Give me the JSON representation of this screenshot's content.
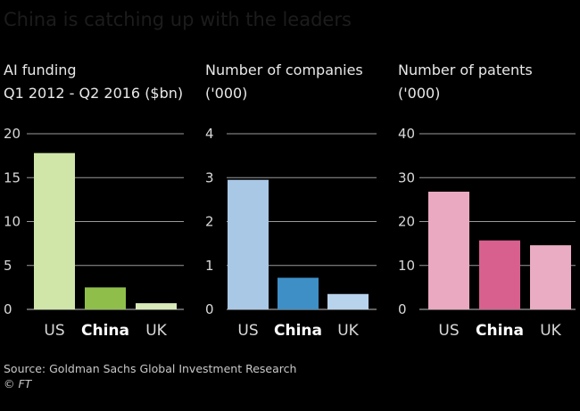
{
  "page": {
    "title": "China is catching up with the leaders",
    "source": "Source: Goldman Sachs Global Investment Research",
    "credit": "© FT"
  },
  "colors": {
    "background": "#000000",
    "gridline": "#9a9a9a",
    "us_funding": "#cfe6a8",
    "china_funding": "#8fbf4a",
    "uk_funding": "#d8eab8",
    "us_companies": "#a9c8e6",
    "china_companies": "#3d8fc6",
    "uk_companies": "#b8d3ec",
    "us_patents": "#eaa9c0",
    "china_patents": "#d8608e",
    "uk_patents": "#eaacc3"
  },
  "chart_data": [
    {
      "type": "bar",
      "title_line1": "AI funding",
      "title_line2": "Q1 2012 - Q2 2016 ($bn)",
      "categories": [
        "US",
        "China",
        "UK"
      ],
      "highlight": "China",
      "values": [
        17.8,
        2.5,
        0.7
      ],
      "ylim": [
        0,
        20
      ],
      "yticks": [
        "0",
        "5",
        "10",
        "15",
        "20"
      ],
      "bar_colors": [
        "#cfe6a8",
        "#8fbf4a",
        "#d8eab8"
      ],
      "grid": true
    },
    {
      "type": "bar",
      "title_line1": "Number of companies",
      "title_line2": "('000)",
      "categories": [
        "US",
        "China",
        "UK"
      ],
      "highlight": "China",
      "values": [
        2.95,
        0.72,
        0.35
      ],
      "ylim": [
        0,
        4
      ],
      "yticks": [
        "0",
        "1",
        "2",
        "3",
        "4"
      ],
      "bar_colors": [
        "#a9c8e6",
        "#3d8fc6",
        "#b8d3ec"
      ],
      "grid": true
    },
    {
      "type": "bar",
      "title_line1": "Number of patents",
      "title_line2": "('000)",
      "categories": [
        "US",
        "China",
        "UK"
      ],
      "highlight": "China",
      "values": [
        26.8,
        15.7,
        14.6
      ],
      "ylim": [
        0,
        40
      ],
      "yticks": [
        "0",
        "10",
        "20",
        "30",
        "40"
      ],
      "bar_colors": [
        "#eaa9c0",
        "#d8608e",
        "#eaacc3"
      ],
      "grid": true
    }
  ]
}
